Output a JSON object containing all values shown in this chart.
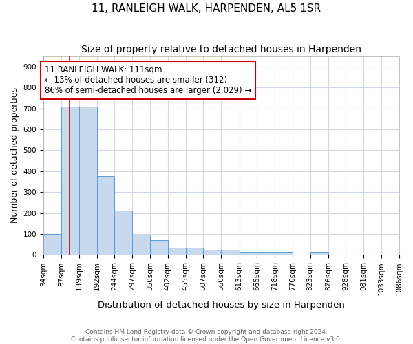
{
  "title": "11, RANLEIGH WALK, HARPENDEN, AL5 1SR",
  "subtitle": "Size of property relative to detached houses in Harpenden",
  "xlabel": "Distribution of detached houses by size in Harpenden",
  "ylabel": "Number of detached properties",
  "footer_line1": "Contains HM Land Registry data © Crown copyright and database right 2024.",
  "footer_line2": "Contains public sector information licensed under the Open Government Licence v3.0.",
  "bin_edges": [
    34,
    87,
    139,
    192,
    244,
    297,
    350,
    402,
    455,
    507,
    560,
    613,
    665,
    718,
    770,
    823,
    876,
    928,
    981,
    1033,
    1086
  ],
  "bar_heights": [
    100,
    710,
    710,
    375,
    210,
    95,
    70,
    35,
    35,
    25,
    25,
    10,
    10,
    10,
    0,
    10,
    0,
    0,
    0,
    0
  ],
  "bar_color": "#c8d9ed",
  "bar_edge_color": "#5b9bd5",
  "property_size": 111,
  "red_line_color": "#cc0000",
  "annotation_text_line1": "11 RANLEIGH WALK: 111sqm",
  "annotation_text_line2": "← 13% of detached houses are smaller (312)",
  "annotation_text_line3": "86% of semi-detached houses are larger (2,029) →",
  "annotation_box_edge_color": "#cc0000",
  "annotation_box_face_color": "#ffffff",
  "ylim": [
    0,
    950
  ],
  "xlim_left": 34,
  "xlim_right": 1086,
  "background_color": "#ffffff",
  "grid_color": "#d0d8e8",
  "title_fontsize": 11,
  "subtitle_fontsize": 10,
  "tick_label_fontsize": 7.5,
  "ylabel_fontsize": 9,
  "xlabel_fontsize": 9.5,
  "footer_fontsize": 6.5,
  "annotation_fontsize": 8.5
}
